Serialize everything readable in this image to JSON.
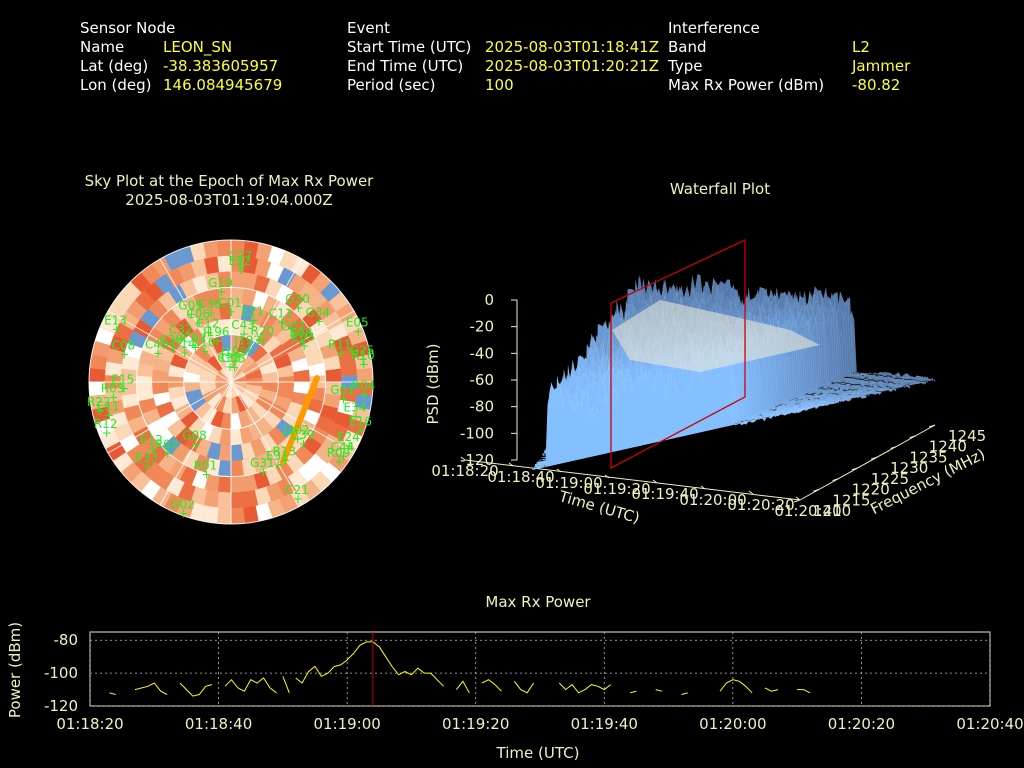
{
  "header": {
    "sensor": {
      "heading": "Sensor Node",
      "name_label": "Name",
      "name": "LEON_SN",
      "lat_label": "Lat (deg)",
      "lat": "-38.383605957",
      "lon_label": "Lon (deg)",
      "lon": "146.084945679"
    },
    "event": {
      "heading": "Event",
      "start_label": "Start Time (UTC)",
      "start": "2025-08-03T01:18:41Z",
      "end_label": "End Time (UTC)",
      "end": "2025-08-03T01:20:21Z",
      "period_label": "Period (sec)",
      "period": "100"
    },
    "interference": {
      "heading": "Interference",
      "band_label": "Band",
      "band": "L2",
      "type_label": "Type",
      "type": "Jammer",
      "power_label": "Max Rx Power (dBm)",
      "power": "-80.82"
    }
  },
  "colors": {
    "text": "#ffffff",
    "value": "#ffff33",
    "title": "#f0f0c0",
    "sat_label": "#22ee22",
    "trail": "#ff9900",
    "marker": "#cc0000",
    "line": "#ffff00"
  },
  "chart_data": [
    {
      "type": "scatter",
      "title": "Sky Plot at the Epoch of Max Rx Power",
      "subtitle": "2025-08-03T01:19:04.000Z",
      "projection": "polar",
      "satellites": [
        {
          "name": "C33",
          "az": 357,
          "el": 80
        },
        {
          "name": "J195",
          "az": 10,
          "el": 76
        },
        {
          "name": "G05",
          "az": 13,
          "el": 80
        },
        {
          "name": "J196",
          "az": 342,
          "el": 62
        },
        {
          "name": "J193",
          "az": 28,
          "el": 66
        },
        {
          "name": "C43",
          "az": 15,
          "el": 58
        },
        {
          "name": "C10",
          "az": 320,
          "el": 64
        },
        {
          "name": "C07",
          "az": 315,
          "el": 58
        },
        {
          "name": "C12",
          "az": 336,
          "el": 55
        },
        {
          "name": "C06",
          "az": 332,
          "el": 47
        },
        {
          "name": "R20",
          "az": 37,
          "el": 56
        },
        {
          "name": "C01",
          "az": 360,
          "el": 45
        },
        {
          "name": "C36",
          "az": 344,
          "el": 44
        },
        {
          "name": "G09",
          "az": 330,
          "el": 40
        },
        {
          "name": "G19",
          "az": 354,
          "el": 32
        },
        {
          "name": "E21",
          "az": 20,
          "el": 48
        },
        {
          "name": "C14",
          "az": 303,
          "el": 55
        },
        {
          "name": "C30",
          "az": 300,
          "el": 47
        },
        {
          "name": "C32",
          "az": 312,
          "el": 48
        },
        {
          "name": "C40",
          "az": 292,
          "el": 40
        },
        {
          "name": "C11",
          "az": 40,
          "el": 40
        },
        {
          "name": "G07",
          "az": 53,
          "el": 40
        },
        {
          "name": "E08",
          "az": 60,
          "el": 38
        },
        {
          "name": "E03",
          "az": 63,
          "el": 38
        },
        {
          "name": "C08",
          "az": 285,
          "el": 20
        },
        {
          "name": "E22",
          "az": 5,
          "el": 18
        },
        {
          "name": "C27",
          "az": 5,
          "el": 15
        },
        {
          "name": "G30",
          "az": 42,
          "el": 26
        },
        {
          "name": "G34",
          "az": 55,
          "el": 22
        },
        {
          "name": "E15",
          "az": 267,
          "el": 22
        },
        {
          "name": "E13",
          "az": 295,
          "el": 10
        },
        {
          "name": "E05",
          "az": 68,
          "el": 3
        },
        {
          "name": "G25",
          "az": 80,
          "el": 5
        },
        {
          "name": "R03",
          "az": 263,
          "el": 15
        },
        {
          "name": "R22",
          "az": 258,
          "el": 5
        },
        {
          "name": "R11",
          "az": 75,
          "el": 18
        },
        {
          "name": "R10",
          "az": 82,
          "el": 5
        },
        {
          "name": "R12",
          "az": 248,
          "el": 5
        },
        {
          "name": "G01",
          "az": 98,
          "el": 18
        },
        {
          "name": "G02",
          "az": 200,
          "el": 2
        },
        {
          "name": "R02",
          "az": 222,
          "el": 30
        },
        {
          "name": "G08",
          "az": 210,
          "el": 45
        },
        {
          "name": "E34",
          "az": 105,
          "el": 8
        },
        {
          "name": "R04",
          "az": 95,
          "el": 5
        },
        {
          "name": "E16",
          "az": 110,
          "el": 2
        },
        {
          "name": "R09",
          "az": 126,
          "el": 5
        },
        {
          "name": "E24",
          "az": 118,
          "el": 5
        },
        {
          "name": "C44",
          "az": 123,
          "el": 5
        },
        {
          "name": "E33",
          "az": 225,
          "el": 15
        },
        {
          "name": "E11",
          "az": 255,
          "el": 10
        },
        {
          "name": "E12",
          "az": 230,
          "el": 25
        },
        {
          "name": "C39",
          "az": 130,
          "el": 30
        },
        {
          "name": "J202",
          "az": 130,
          "el": 35
        },
        {
          "name": "R13",
          "az": 145,
          "el": 30
        },
        {
          "name": "E31",
          "az": 150,
          "el": 30
        },
        {
          "name": "C21",
          "az": 150,
          "el": 5
        },
        {
          "name": "R01",
          "az": 195,
          "el": 30
        },
        {
          "name": "G31",
          "az": 160,
          "el": 30
        }
      ]
    },
    {
      "type": "area",
      "title": "Waterfall Plot",
      "xlabel": "Time (UTC)",
      "ylabel": "Frequency (MHz)",
      "zlabel": "PSD (dBm)",
      "time_ticks": [
        "01:18:20",
        "01:18:40",
        "01:19:00",
        "01:19:20",
        "01:19:40",
        "01:20:00",
        "01:20:20",
        "01:20:40"
      ],
      "freq_ticks": [
        1210,
        1215,
        1220,
        1225,
        1230,
        1235,
        1240,
        1245
      ],
      "z_ticks": [
        0,
        -20,
        -40,
        -60,
        -80,
        -100,
        -120
      ],
      "zlim": [
        -120,
        0
      ],
      "marker_time": "01:19:04"
    },
    {
      "type": "line",
      "title": "Max Rx Power",
      "xlabel": "Time (UTC)",
      "ylabel": "Power (dBm)",
      "x_ticks": [
        "01:18:20",
        "01:18:40",
        "01:19:00",
        "01:19:20",
        "01:19:40",
        "01:20:00",
        "01:20:20",
        "01:20:40"
      ],
      "y_ticks": [
        -80,
        -100,
        -120
      ],
      "xlim_sec": [
        0,
        140
      ],
      "ylim": [
        -120,
        -75
      ],
      "grid": true,
      "marker_time_sec": 44,
      "series": [
        {
          "points": [
            [
              3,
              -112
            ],
            [
              4,
              -113
            ]
          ]
        },
        {
          "points": [
            [
              7,
              -110
            ],
            [
              9,
              -108
            ],
            [
              10,
              -106
            ],
            [
              11,
              -111
            ],
            [
              12,
              -113
            ]
          ]
        },
        {
          "points": [
            [
              14,
              -106
            ],
            [
              15,
              -110
            ],
            [
              16,
              -114
            ],
            [
              17,
              -113
            ],
            [
              18,
              -108
            ],
            [
              19,
              -107
            ]
          ]
        },
        {
          "points": [
            [
              21,
              -108
            ],
            [
              22,
              -104
            ],
            [
              23,
              -109
            ],
            [
              24,
              -111
            ],
            [
              25,
              -104
            ],
            [
              26,
              -106
            ],
            [
              27,
              -103
            ],
            [
              28,
              -109
            ],
            [
              29,
              -112
            ]
          ]
        },
        {
          "points": [
            [
              30,
              -102
            ],
            [
              31,
              -112
            ]
          ]
        },
        {
          "points": [
            [
              32,
              -103
            ],
            [
              33,
              -106
            ],
            [
              34,
              -99
            ],
            [
              35,
              -96
            ],
            [
              36,
              -102
            ],
            [
              37,
              -100
            ],
            [
              38,
              -96
            ],
            [
              39,
              -95
            ],
            [
              40,
              -92
            ],
            [
              41,
              -88
            ],
            [
              42,
              -83
            ],
            [
              43,
              -81
            ],
            [
              44,
              -81
            ],
            [
              45,
              -84
            ],
            [
              46,
              -90
            ],
            [
              47,
              -96
            ],
            [
              48,
              -101
            ],
            [
              49,
              -99
            ],
            [
              50,
              -101
            ],
            [
              51,
              -97
            ],
            [
              52,
              -100
            ],
            [
              53,
              -100
            ],
            [
              54,
              -104
            ],
            [
              55,
              -108
            ]
          ]
        },
        {
          "points": [
            [
              57,
              -110
            ],
            [
              58,
              -105
            ],
            [
              59,
              -112
            ]
          ]
        },
        {
          "points": [
            [
              61,
              -106
            ],
            [
              62,
              -104
            ],
            [
              63,
              -107
            ],
            [
              64,
              -111
            ]
          ]
        },
        {
          "points": [
            [
              66,
              -105
            ],
            [
              67,
              -110
            ],
            [
              68,
              -112
            ],
            [
              69,
              -106
            ]
          ]
        },
        {
          "points": [
            [
              73,
              -106
            ],
            [
              74,
              -110
            ],
            [
              75,
              -107
            ],
            [
              76,
              -112
            ],
            [
              77,
              -110
            ],
            [
              78,
              -107
            ],
            [
              79,
              -108
            ],
            [
              80,
              -110
            ],
            [
              81,
              -107
            ]
          ]
        },
        {
          "points": [
            [
              84,
              -112
            ],
            [
              85,
              -111
            ]
          ]
        },
        {
          "points": [
            [
              88,
              -110
            ],
            [
              89,
              -111
            ]
          ]
        },
        {
          "points": [
            [
              92,
              -113
            ],
            [
              93,
              -112
            ]
          ]
        },
        {
          "points": [
            [
              98,
              -111
            ],
            [
              99,
              -106
            ],
            [
              100,
              -104
            ],
            [
              101,
              -105
            ],
            [
              102,
              -108
            ],
            [
              103,
              -112
            ]
          ]
        },
        {
          "points": [
            [
              105,
              -109
            ],
            [
              106,
              -111
            ],
            [
              107,
              -110
            ]
          ]
        },
        {
          "points": [
            [
              110,
              -110
            ],
            [
              111,
              -110
            ],
            [
              112,
              -112
            ]
          ]
        }
      ]
    }
  ]
}
